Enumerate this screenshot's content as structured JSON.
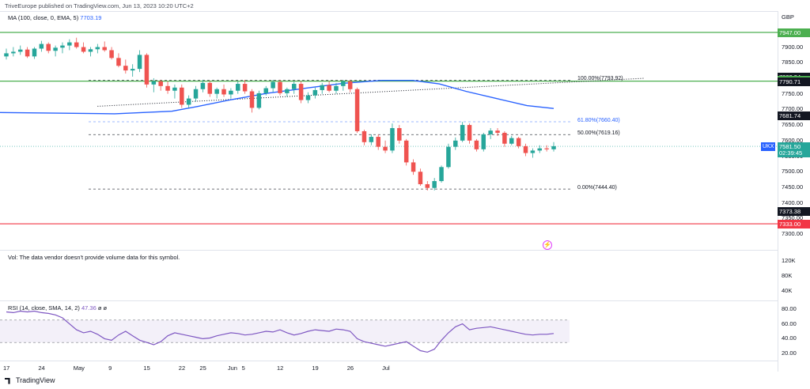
{
  "header": {
    "published": "TriveEurope published on TradingView.com, Jun 13, 2023 10:20 UTC+2"
  },
  "legends": {
    "ma_label": "MA (100, close, 0, EMA, 5)",
    "ma_value": "7703.19",
    "volume": "Vol: The data vendor doesn't provide volume data for this symbol.",
    "rsi_label": "RSI (14, close, SMA, 14, 2)",
    "rsi_value": "47.36",
    "rsi_extra": "ø  ø"
  },
  "currency": "GBP",
  "symbol_tag": "UKX",
  "footer": {
    "brand": "TradingView"
  },
  "colors": {
    "up": "#26a69a",
    "down": "#ef5350",
    "ma": "#2962ff",
    "rsi": "#7e57c2",
    "resistance": "#4caf50",
    "support": "#f23645"
  },
  "chart_data": {
    "type": "candlestick",
    "symbol": "UKX",
    "timeframe": "daily",
    "ylim": [
      7290,
      7980
    ],
    "price_ticks": [
      "7900.00",
      "7850.00",
      "7800.00",
      "7750.00",
      "7700.00",
      "7650.00",
      "7600.00",
      "7550.00",
      "7500.00",
      "7450.00",
      "7400.00",
      "7350.00",
      "7300.00"
    ],
    "price_labels": [
      {
        "text": "7947.00",
        "value": 7947,
        "color": "#4caf50"
      },
      {
        "text": "7803.94",
        "value": 7803.94,
        "color": "#131722"
      },
      {
        "text": "7793.92",
        "value": 7793.92,
        "color": "#4caf50"
      },
      {
        "text": "7790.71",
        "value": 7790.71,
        "color": "#131722"
      },
      {
        "text": "7681.74",
        "value": 7681.74,
        "color": "#131722"
      },
      {
        "text": "7581.50",
        "value": 7581.5,
        "color": "#26a69a"
      },
      {
        "text": "02:39:45",
        "value": 7562,
        "color": "#26a69a"
      },
      {
        "text": "7373.38",
        "value": 7373.38,
        "color": "#131722"
      },
      {
        "text": "7333.00",
        "value": 7333,
        "color": "#f23645"
      }
    ],
    "x_ticks": [
      {
        "label": "17",
        "index": 0
      },
      {
        "label": "24",
        "index": 5
      },
      {
        "label": "May",
        "index": 10
      },
      {
        "label": "9",
        "index": 15
      },
      {
        "label": "15",
        "index": 20
      },
      {
        "label": "22",
        "index": 25
      },
      {
        "label": "25",
        "index": 28
      },
      {
        "label": "Jun",
        "index": 32
      },
      {
        "label": "5",
        "index": 34
      },
      {
        "label": "12",
        "index": 39
      },
      {
        "label": "19",
        "index": 44
      },
      {
        "label": "26",
        "index": 49
      },
      {
        "label": "Jul",
        "index": 54
      }
    ],
    "candles": [
      [
        7870,
        7895,
        7860,
        7880
      ],
      [
        7880,
        7900,
        7870,
        7885
      ],
      [
        7885,
        7905,
        7875,
        7892
      ],
      [
        7892,
        7900,
        7865,
        7870
      ],
      [
        7870,
        7900,
        7862,
        7895
      ],
      [
        7895,
        7920,
        7885,
        7910
      ],
      [
        7910,
        7915,
        7880,
        7888
      ],
      [
        7888,
        7905,
        7870,
        7898
      ],
      [
        7898,
        7915,
        7880,
        7905
      ],
      [
        7905,
        7925,
        7890,
        7915
      ],
      [
        7915,
        7930,
        7895,
        7900
      ],
      [
        7900,
        7915,
        7880,
        7885
      ],
      [
        7885,
        7900,
        7870,
        7893
      ],
      [
        7893,
        7910,
        7880,
        7900
      ],
      [
        7900,
        7918,
        7885,
        7890
      ],
      [
        7890,
        7900,
        7860,
        7865
      ],
      [
        7865,
        7880,
        7835,
        7840
      ],
      [
        7840,
        7860,
        7815,
        7825
      ],
      [
        7825,
        7845,
        7805,
        7830
      ],
      [
        7830,
        7890,
        7820,
        7875
      ],
      [
        7875,
        7880,
        7770,
        7780
      ],
      [
        7780,
        7800,
        7755,
        7790
      ],
      [
        7790,
        7795,
        7760,
        7775
      ],
      [
        7775,
        7790,
        7750,
        7760
      ],
      [
        7760,
        7780,
        7735,
        7770
      ],
      [
        7770,
        7780,
        7705,
        7715
      ],
      [
        7715,
        7745,
        7705,
        7735
      ],
      [
        7735,
        7775,
        7725,
        7765
      ],
      [
        7765,
        7795,
        7755,
        7785
      ],
      [
        7785,
        7790,
        7740,
        7750
      ],
      [
        7750,
        7770,
        7735,
        7765
      ],
      [
        7765,
        7780,
        7740,
        7748
      ],
      [
        7748,
        7768,
        7735,
        7760
      ],
      [
        7760,
        7790,
        7750,
        7782
      ],
      [
        7782,
        7795,
        7750,
        7758
      ],
      [
        7758,
        7765,
        7690,
        7705
      ],
      [
        7705,
        7760,
        7700,
        7752
      ],
      [
        7752,
        7775,
        7745,
        7768
      ],
      [
        7768,
        7795,
        7755,
        7788
      ],
      [
        7788,
        7795,
        7745,
        7752
      ],
      [
        7752,
        7770,
        7740,
        7765
      ],
      [
        7765,
        7790,
        7750,
        7782
      ],
      [
        7782,
        7790,
        7720,
        7730
      ],
      [
        7730,
        7755,
        7720,
        7745
      ],
      [
        7745,
        7770,
        7735,
        7762
      ],
      [
        7762,
        7785,
        7750,
        7778
      ],
      [
        7778,
        7790,
        7755,
        7760
      ],
      [
        7760,
        7785,
        7750,
        7775
      ],
      [
        7775,
        7795,
        7760,
        7790
      ],
      [
        7790,
        7795,
        7755,
        7765
      ],
      [
        7765,
        7770,
        7625,
        7630
      ],
      [
        7630,
        7635,
        7585,
        7595
      ],
      [
        7595,
        7620,
        7585,
        7612
      ],
      [
        7612,
        7620,
        7570,
        7580
      ],
      [
        7580,
        7600,
        7560,
        7568
      ],
      [
        7568,
        7655,
        7560,
        7640
      ],
      [
        7640,
        7650,
        7590,
        7600
      ],
      [
        7600,
        7605,
        7520,
        7530
      ],
      [
        7530,
        7540,
        7490,
        7500
      ],
      [
        7500,
        7510,
        7455,
        7460
      ],
      [
        7460,
        7470,
        7440,
        7448
      ],
      [
        7448,
        7480,
        7440,
        7470
      ],
      [
        7470,
        7520,
        7465,
        7515
      ],
      [
        7515,
        7590,
        7510,
        7580
      ],
      [
        7580,
        7610,
        7570,
        7600
      ],
      [
        7600,
        7660,
        7595,
        7650
      ],
      [
        7650,
        7655,
        7590,
        7600
      ],
      [
        7600,
        7605,
        7565,
        7572
      ],
      [
        7572,
        7625,
        7565,
        7620
      ],
      [
        7620,
        7640,
        7605,
        7632
      ],
      [
        7632,
        7640,
        7615,
        7625
      ],
      [
        7625,
        7630,
        7580,
        7590
      ],
      [
        7590,
        7615,
        7585,
        7608
      ],
      [
        7608,
        7612,
        7575,
        7582
      ],
      [
        7582,
        7590,
        7550,
        7560
      ],
      [
        7560,
        7575,
        7545,
        7568
      ],
      [
        7568,
        7585,
        7560,
        7575
      ],
      [
        7575,
        7585,
        7565,
        7572
      ],
      [
        7572,
        7595,
        7565,
        7582
      ]
    ],
    "ma": [
      [
        0,
        7690
      ],
      [
        30,
        7686
      ],
      [
        45,
        7694
      ],
      [
        52,
        7710
      ],
      [
        60,
        7730
      ],
      [
        70,
        7752
      ],
      [
        80,
        7768
      ],
      [
        90,
        7784
      ],
      [
        100,
        7793
      ],
      [
        108,
        7793
      ],
      [
        115,
        7782
      ],
      [
        122,
        7758
      ],
      [
        130,
        7735
      ],
      [
        138,
        7712
      ],
      [
        145,
        7703
      ]
    ],
    "fib_levels": [
      {
        "label": "100.00%(7793.92)",
        "value": 7793.92
      },
      {
        "label": "61.80%(7660.40)",
        "value": 7660.4
      },
      {
        "label": "50.00%(7619.16)",
        "value": 7619.16
      },
      {
        "label": "0.00%(7444.40)",
        "value": 7444.4
      }
    ],
    "horizontal_levels": [
      {
        "value": 7947,
        "color": "#4caf50"
      },
      {
        "value": 7790.71,
        "color": "#4caf50"
      },
      {
        "value": 7333,
        "color": "#f23645"
      }
    ],
    "trendline": {
      "from": [
        13,
        7710
      ],
      "to": [
        91,
        7800
      ]
    },
    "volume_axis": [
      "120K",
      "80K",
      "40K"
    ],
    "rsi": {
      "ticks": [
        "80.00",
        "60.00",
        "40.00",
        "20.00"
      ],
      "ylim": [
        15,
        85
      ],
      "band": [
        40,
        60
      ],
      "values": [
        76,
        75,
        77,
        76,
        77,
        75,
        74,
        72,
        68,
        60,
        52,
        48,
        50,
        46,
        40,
        38,
        45,
        50,
        44,
        38,
        35,
        32,
        36,
        44,
        48,
        46,
        44,
        42,
        40,
        41,
        44,
        46,
        48,
        47,
        45,
        46,
        48,
        50,
        49,
        52,
        48,
        45,
        47,
        50,
        52,
        51,
        50,
        53,
        52,
        50,
        40,
        36,
        34,
        32,
        30,
        32,
        34,
        36,
        30,
        24,
        22,
        26,
        38,
        48,
        56,
        60,
        52,
        54,
        55,
        56,
        54,
        52,
        50,
        48,
        46,
        45,
        46,
        46,
        47
      ]
    }
  }
}
